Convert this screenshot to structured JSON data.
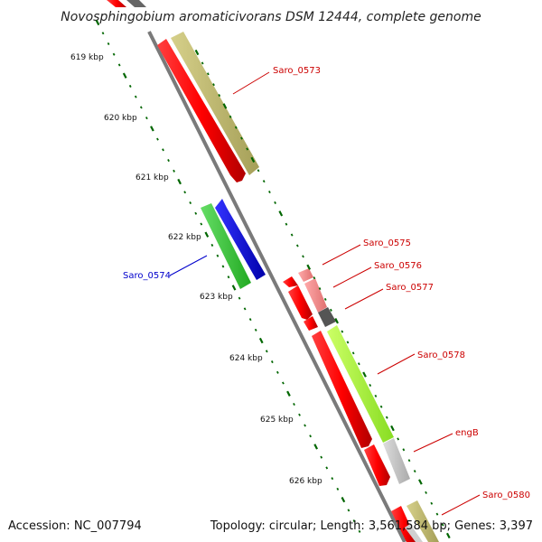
{
  "title": "Novosphingobium aromaticivorans DSM 12444, complete genome",
  "footer": {
    "accession": "Accession: NC_007794",
    "summary": "Topology: circular; Length: 3,561,584 bp; Genes: 3,397"
  },
  "scale_labels": [
    "619 kbp",
    "620 kbp",
    "621 kbp",
    "622 kbp",
    "623 kbp",
    "624 kbp",
    "625 kbp",
    "626 kbp"
  ],
  "genes": [
    {
      "label": "Saro_0573",
      "color": "#cc0000"
    },
    {
      "label": "Saro_0574",
      "color": "#0000cc"
    },
    {
      "label": "Saro_0575",
      "color": "#cc0000"
    },
    {
      "label": "Saro_0576",
      "color": "#cc0000"
    },
    {
      "label": "Saro_0577",
      "color": "#cc0000"
    },
    {
      "label": "Saro_0578",
      "color": "#cc0000"
    },
    {
      "label": "engB",
      "color": "#cc0000"
    },
    {
      "label": "Saro_0580",
      "color": "#cc0000"
    }
  ],
  "colors": {
    "backbone": "#808080",
    "tick": "#006600",
    "cds_forward": "#ff0000",
    "cds_reverse_green": "#33cc33",
    "cds_reverse_blue": "#0000ff",
    "gene_khaki": "#bdb76b",
    "gene_lime": "#aaff33",
    "gene_gray": "#c0c0c0",
    "gene_dark": "#555555",
    "gene_pink": "#f08080"
  }
}
